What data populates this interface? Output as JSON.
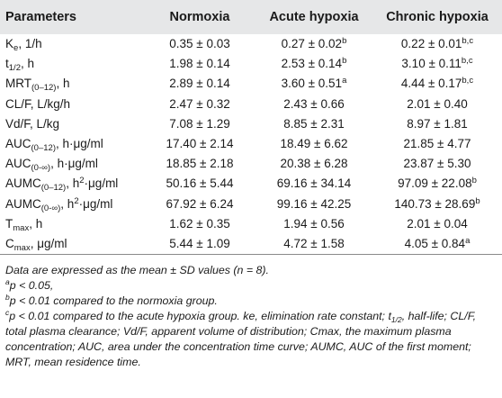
{
  "table": {
    "headers": [
      "Parameters",
      "Normoxia",
      "Acute hypoxia",
      "Chronic hypoxia"
    ],
    "rows": [
      {
        "param": {
          "main": "K",
          "sub": "e",
          "suffix": ", 1/h"
        },
        "normoxia": "0.35 ± 0.03",
        "acute": {
          "value": "0.27 ± 0.02",
          "sup": "b"
        },
        "chronic": {
          "value": "0.22 ± 0.01",
          "sup": "b,c"
        }
      },
      {
        "param": {
          "main": "t",
          "sub": "1/2",
          "suffix": ", h"
        },
        "normoxia": "1.98 ± 0.14",
        "acute": {
          "value": "2.53 ± 0.14",
          "sup": "b"
        },
        "chronic": {
          "value": "3.10 ± 0.11",
          "sup": "b,c"
        }
      },
      {
        "param": {
          "main": "MRT",
          "sub": "(0–12)",
          "suffix": ", h"
        },
        "normoxia": "2.89 ± 0.14",
        "acute": {
          "value": "3.60 ± 0.51",
          "sup": "a"
        },
        "chronic": {
          "value": "4.44 ± 0.17",
          "sup": "b,c"
        }
      },
      {
        "param": {
          "main": "CL/F, L/kg/h",
          "sub": "",
          "suffix": ""
        },
        "normoxia": "2.47 ± 0.32",
        "acute": {
          "value": "2.43 ± 0.66",
          "sup": ""
        },
        "chronic": {
          "value": "2.01 ± 0.40",
          "sup": ""
        }
      },
      {
        "param": {
          "main": "Vd/F, L/kg",
          "sub": "",
          "suffix": ""
        },
        "normoxia": "7.08 ± 1.29",
        "acute": {
          "value": "8.85 ± 2.31",
          "sup": ""
        },
        "chronic": {
          "value": "8.97 ± 1.81",
          "sup": ""
        }
      },
      {
        "param": {
          "main": "AUC",
          "sub": "(0–12)",
          "suffix": ", h·μg/ml"
        },
        "normoxia": "17.40 ± 2.14",
        "acute": {
          "value": "18.49 ± 6.62",
          "sup": ""
        },
        "chronic": {
          "value": "21.85 ± 4.77",
          "sup": ""
        }
      },
      {
        "param": {
          "main": "AUC",
          "sub": "(0-∞)",
          "suffix": ", h·μg/ml"
        },
        "normoxia": "18.85 ± 2.18",
        "acute": {
          "value": "20.38 ± 6.28",
          "sup": ""
        },
        "chronic": {
          "value": "23.87 ± 5.30",
          "sup": ""
        }
      },
      {
        "param": {
          "main": "AUMC",
          "sub": "(0–12)",
          "suffix_pre": ", h",
          "suffix_sup": "2",
          "suffix": "·μg/ml"
        },
        "normoxia": "50.16 ± 5.44",
        "acute": {
          "value": "69.16 ± 34.14",
          "sup": ""
        },
        "chronic": {
          "value": "97.09 ± 22.08",
          "sup": "b"
        }
      },
      {
        "param": {
          "main": "AUMC",
          "sub": "(0-∞)",
          "suffix_pre": ", h",
          "suffix_sup": "2",
          "suffix": "·μg/ml"
        },
        "normoxia": "67.92 ± 6.24",
        "acute": {
          "value": "99.16 ± 42.25",
          "sup": ""
        },
        "chronic": {
          "value": "140.73 ± 28.69",
          "sup": "b"
        }
      },
      {
        "param": {
          "main": "T",
          "sub": "max",
          "suffix": ", h"
        },
        "normoxia": "1.62 ± 0.35",
        "acute": {
          "value": "1.94 ± 0.56",
          "sup": ""
        },
        "chronic": {
          "value": "2.01 ± 0.04",
          "sup": ""
        }
      },
      {
        "param": {
          "main": "C",
          "sub": "max",
          "suffix": ", μg/ml"
        },
        "normoxia": "5.44 ± 1.09",
        "acute": {
          "value": "4.72 ± 1.58",
          "sup": ""
        },
        "chronic": {
          "value": "4.05 ± 0.84",
          "sup": "a"
        }
      }
    ]
  },
  "notes": {
    "line1": "Data are expressed as the mean ± SD values (n = 8).",
    "a_mark": "a",
    "a_text": "p < 0.05,",
    "b_mark": "b",
    "b_text": "p < 0.01 compared to the normoxia group.",
    "c_mark": "c",
    "c_text_1": "p < 0.01 compared to the acute hypoxia group. ke, elimination rate constant; t",
    "c_text_sub": "1/2",
    "c_text_2": ", half-life; CL/F, total plasma clearance; Vd/F, apparent volume of distribution; Cmax, the maximum plasma concentration; AUC, area under the concentration time curve; AUMC, AUC of the first moment; MRT, mean residence time."
  }
}
